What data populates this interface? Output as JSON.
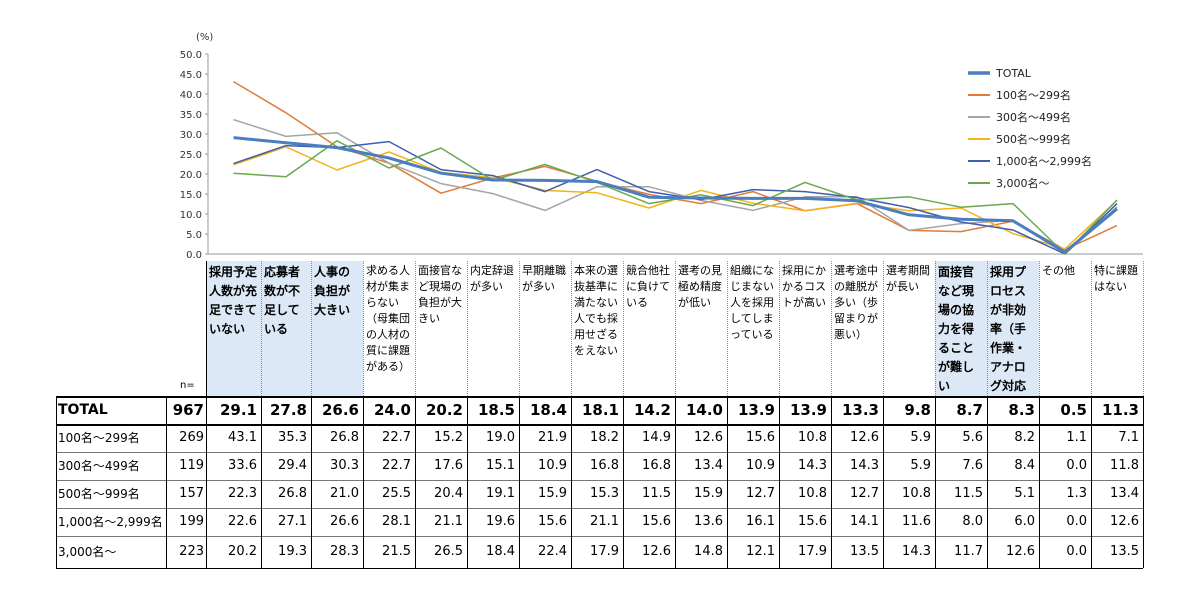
{
  "chart_data": {
    "type": "line",
    "ylabel": "(%)",
    "ylim": [
      0,
      50
    ],
    "yticks": [
      "0.0",
      "5.0",
      "10.0",
      "15.0",
      "20.0",
      "25.0",
      "30.0",
      "35.0",
      "40.0",
      "45.0",
      "50.0"
    ],
    "legend_position": "top-right",
    "grid": false,
    "categories": [
      "採用予定人数が充足できていない",
      "応募者数が不足している",
      "人事の負担が大きい",
      "求める人材が集まらない（母集団の人材の質に課題がある）",
      "面接官など現場の負担が大きい",
      "内定辞退が多い",
      "早期離職が多い",
      "本来の選抜基準に満たない人でも採用せざるをえない",
      "競合他社に負けている",
      "選考の見極め精度が低い",
      "組織になじまない人を採用してしまっている",
      "採用にかかるコストが高い",
      "選考途中の離脱が多い（歩留まりが悪い）",
      "選考期間が長い",
      "面接官など現場の協力を得ることが難しい",
      "採用プロセスが非効率（手作業・アナログ対応が多い）",
      "その他",
      "特に課題はない"
    ],
    "series": [
      {
        "name": "TOTAL",
        "color": "#4a7ebf",
        "width": 3,
        "values": [
          29.1,
          27.8,
          26.6,
          24.0,
          20.2,
          18.5,
          18.4,
          18.1,
          14.2,
          14.0,
          13.9,
          13.9,
          13.3,
          9.8,
          8.7,
          8.3,
          0.5,
          11.3
        ]
      },
      {
        "name": "100名～299名",
        "color": "#e07b39",
        "width": 1.5,
        "values": [
          43.1,
          35.3,
          26.8,
          22.7,
          15.2,
          19.0,
          21.9,
          18.2,
          14.9,
          12.6,
          15.6,
          10.8,
          12.6,
          5.9,
          5.6,
          8.2,
          1.1,
          7.1
        ]
      },
      {
        "name": "300名～499名",
        "color": "#a5a5a5",
        "width": 1.5,
        "values": [
          33.6,
          29.4,
          30.3,
          22.7,
          17.6,
          15.1,
          10.9,
          16.8,
          16.8,
          13.4,
          10.9,
          14.3,
          14.3,
          5.9,
          7.6,
          8.4,
          0.0,
          11.8
        ]
      },
      {
        "name": "500名～999名",
        "color": "#f2b418",
        "width": 1.5,
        "values": [
          22.3,
          26.8,
          21.0,
          25.5,
          20.4,
          19.1,
          15.9,
          15.3,
          11.5,
          15.9,
          12.7,
          10.8,
          12.7,
          10.8,
          11.5,
          5.1,
          1.3,
          13.4
        ]
      },
      {
        "name": "1,000名～2,999名",
        "color": "#3f5eab",
        "width": 1.5,
        "values": [
          22.6,
          27.1,
          26.6,
          28.1,
          21.1,
          19.6,
          15.6,
          21.1,
          15.6,
          13.6,
          16.1,
          15.6,
          14.1,
          11.6,
          8.0,
          6.0,
          0.0,
          12.6
        ]
      },
      {
        "name": "3,000名～",
        "color": "#6aa84f",
        "width": 1.5,
        "values": [
          20.2,
          19.3,
          28.3,
          21.5,
          26.5,
          18.4,
          22.4,
          17.9,
          12.6,
          14.8,
          12.1,
          17.9,
          13.5,
          14.3,
          11.7,
          12.6,
          0.0,
          13.5
        ]
      }
    ]
  },
  "table": {
    "n_label": "n=",
    "headers": [
      "採用予定人数が充足できていない",
      "応募者数が不足している",
      "人事の負担が大きい",
      "求める人材が集まらない （母集団の人材の質に課題がある）",
      "面接官など現場の負担が大きい",
      "内定辞退が多い",
      "早期離職が多い",
      "本来の選抜基準に満たない人でも採用せざるをえない",
      "競合他社に負けている",
      "選考の見極め精度が低い",
      "組織になじまない人を採用してしまっている",
      "採用にかかるコストが高い",
      "選考途中の離脱が多い（歩留まりが悪い）",
      "選考期間が長い",
      "面接官など現場の協力を得ることが難しい",
      "採用プロセスが非効率（手作業・アナログ対応が多い）",
      "その他",
      "特に課題はない"
    ],
    "rows": [
      {
        "label": "TOTAL",
        "n": "967",
        "values": [
          "29.1",
          "27.8",
          "26.6",
          "24.0",
          "20.2",
          "18.5",
          "18.4",
          "18.1",
          "14.2",
          "14.0",
          "13.9",
          "13.9",
          "13.3",
          "9.8",
          "8.7",
          "8.3",
          "0.5",
          "11.3"
        ]
      },
      {
        "label": "100名～299名",
        "n": "269",
        "values": [
          "43.1",
          "35.3",
          "26.8",
          "22.7",
          "15.2",
          "19.0",
          "21.9",
          "18.2",
          "14.9",
          "12.6",
          "15.6",
          "10.8",
          "12.6",
          "5.9",
          "5.6",
          "8.2",
          "1.1",
          "7.1"
        ]
      },
      {
        "label": "300名～499名",
        "n": "119",
        "values": [
          "33.6",
          "29.4",
          "30.3",
          "22.7",
          "17.6",
          "15.1",
          "10.9",
          "16.8",
          "16.8",
          "13.4",
          "10.9",
          "14.3",
          "14.3",
          "5.9",
          "7.6",
          "8.4",
          "0.0",
          "11.8"
        ]
      },
      {
        "label": "500名～999名",
        "n": "157",
        "values": [
          "22.3",
          "26.8",
          "21.0",
          "25.5",
          "20.4",
          "19.1",
          "15.9",
          "15.3",
          "11.5",
          "15.9",
          "12.7",
          "10.8",
          "12.7",
          "10.8",
          "11.5",
          "5.1",
          "1.3",
          "13.4"
        ]
      },
      {
        "label": "1,000名～2,999名",
        "n": "199",
        "values": [
          "22.6",
          "27.1",
          "26.6",
          "28.1",
          "21.1",
          "19.6",
          "15.6",
          "21.1",
          "15.6",
          "13.6",
          "16.1",
          "15.6",
          "14.1",
          "11.6",
          "8.0",
          "6.0",
          "0.0",
          "12.6"
        ]
      },
      {
        "label": "3,000名～",
        "n": "223",
        "values": [
          "20.2",
          "19.3",
          "28.3",
          "21.5",
          "26.5",
          "18.4",
          "22.4",
          "17.9",
          "12.6",
          "14.8",
          "12.1",
          "17.9",
          "13.5",
          "14.3",
          "11.7",
          "12.6",
          "0.0",
          "13.5"
        ]
      }
    ]
  }
}
